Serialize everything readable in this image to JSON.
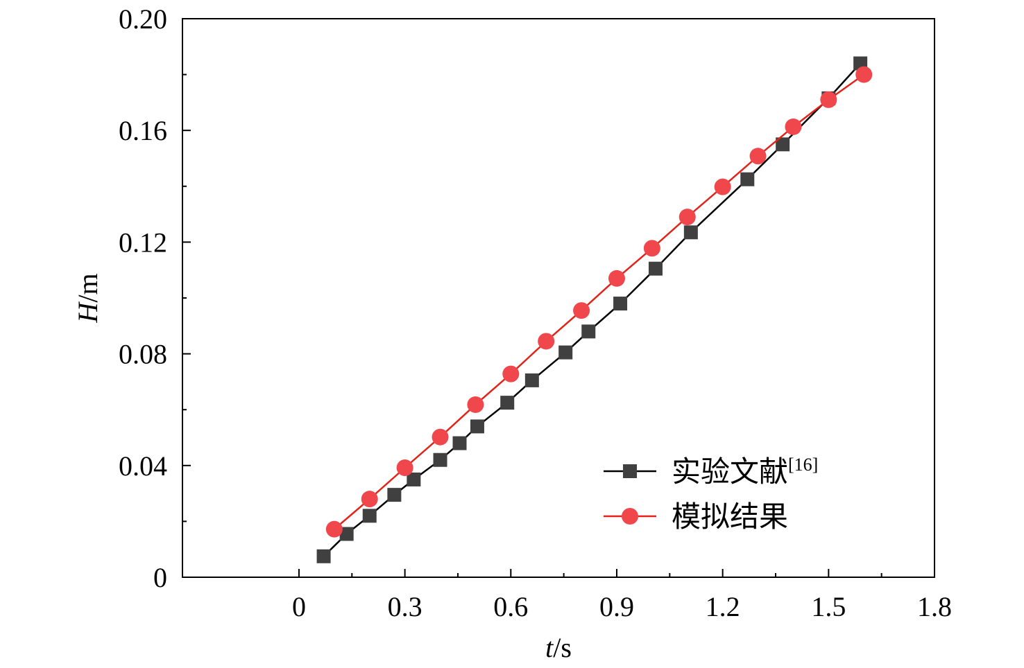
{
  "chart_data": {
    "type": "line",
    "xlabel": {
      "var": "t",
      "unit": "/s"
    },
    "ylabel": {
      "var": "H",
      "unit": "/m"
    },
    "xlim": [
      -0.33,
      1.8
    ],
    "ylim": [
      0,
      0.2
    ],
    "x_ticks": [
      "0",
      "0.3",
      "0.6",
      "0.9",
      "1.2",
      "1.5",
      "1.8"
    ],
    "x_tick_values": [
      0,
      0.3,
      0.6,
      0.9,
      1.2,
      1.5,
      1.8
    ],
    "y_ticks": [
      "0",
      "0.04",
      "0.08",
      "0.12",
      "0.16",
      "0.20"
    ],
    "y_tick_values": [
      0,
      0.04,
      0.08,
      0.12,
      0.16,
      0.2
    ],
    "grid": false,
    "legend_position": "lower-right",
    "series": [
      {
        "name": "实验文献",
        "name_sup": "[16]",
        "marker": "square",
        "color": "#000000",
        "marker_color": "#404040",
        "x": [
          0.07,
          0.135,
          0.2,
          0.27,
          0.325,
          0.4,
          0.455,
          0.505,
          0.59,
          0.66,
          0.755,
          0.82,
          0.91,
          1.01,
          1.11,
          1.27,
          1.37,
          1.5,
          1.59
        ],
        "y": [
          0.0075,
          0.0155,
          0.022,
          0.0295,
          0.035,
          0.042,
          0.048,
          0.054,
          0.0625,
          0.0705,
          0.0805,
          0.088,
          0.098,
          0.1105,
          0.1235,
          0.1425,
          0.155,
          0.1715,
          0.184
        ]
      },
      {
        "name": "模拟结果",
        "marker": "circle",
        "color": "#e2231a",
        "marker_color": "#f0474d",
        "x": [
          0.1,
          0.2,
          0.3,
          0.4,
          0.5,
          0.6,
          0.7,
          0.8,
          0.9,
          1.0,
          1.1,
          1.2,
          1.3,
          1.4,
          1.5,
          1.6
        ],
        "y": [
          0.0172,
          0.028,
          0.0392,
          0.0502,
          0.0618,
          0.0728,
          0.0845,
          0.0955,
          0.107,
          0.1178,
          0.129,
          0.1398,
          0.1508,
          0.1613,
          0.171,
          0.18
        ]
      }
    ]
  }
}
